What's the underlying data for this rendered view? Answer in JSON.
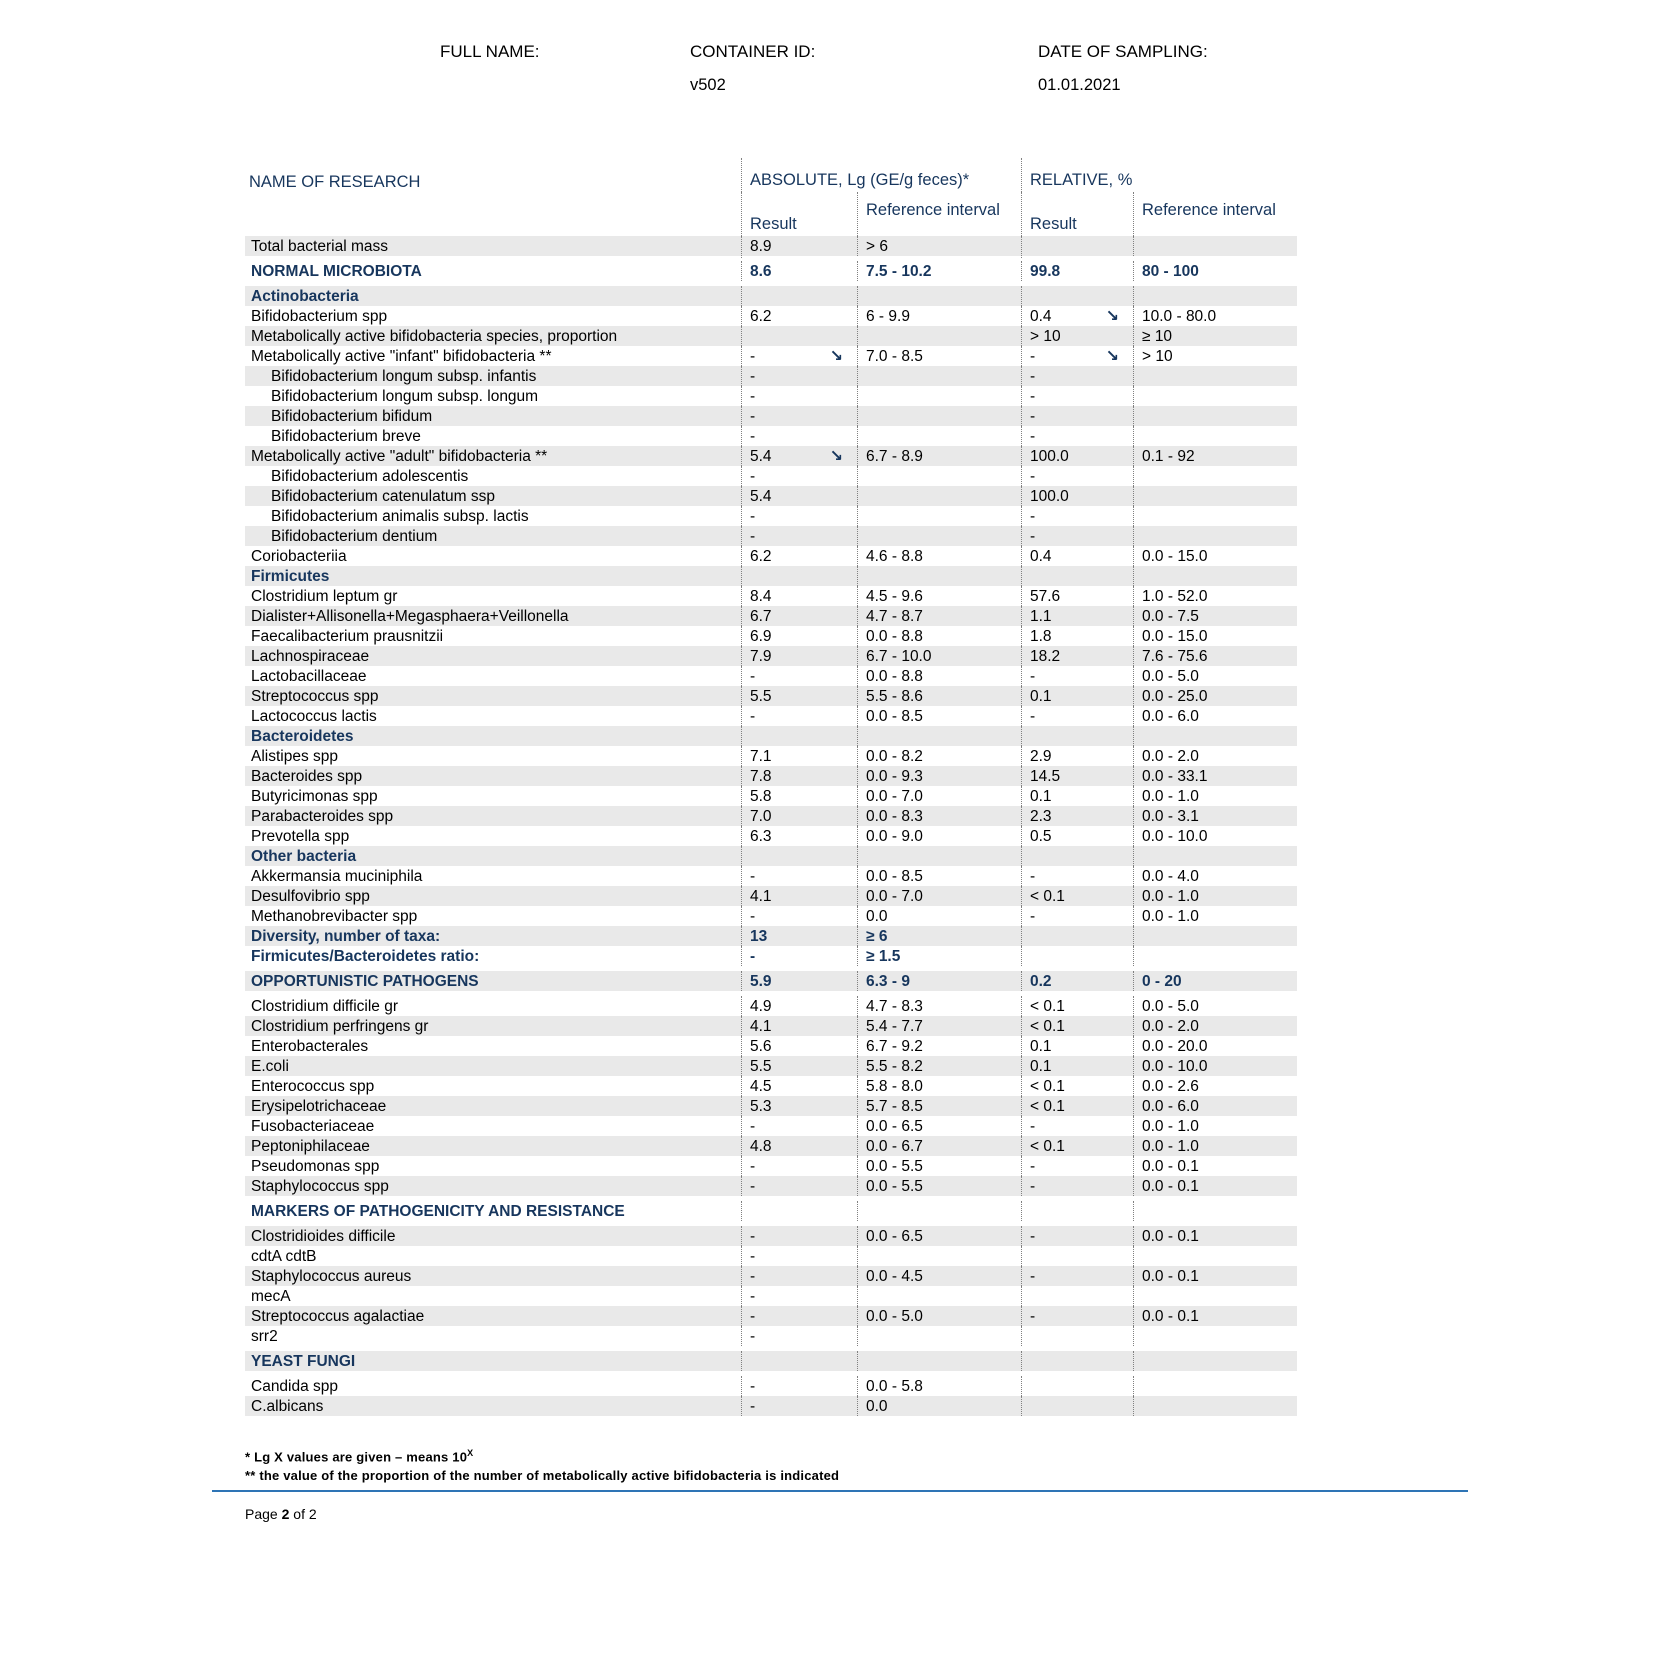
{
  "header": {
    "full_name_label": "FULL NAME:",
    "container_id_label": "CONTAINER ID:",
    "container_id_value": "v502",
    "date_label": "DATE OF SAMPLING:",
    "date_value": "01.01.2021"
  },
  "table": {
    "col_name": "NAME OF RESEARCH",
    "col_absolute": "ABSOLUTE, Lg (GE/g feces)*",
    "col_relative": "RELATIVE, %",
    "sub_result": "Result",
    "sub_ref": "Reference interval",
    "rows": [
      {
        "name": "Total bacterial mass",
        "abs": "8.9",
        "abs_ref": "> 6"
      },
      {
        "name": "NORMAL MICROBIOTA",
        "style": "bold",
        "spaced": true,
        "abs": "8.6",
        "abs_ref": "7.5 - 10.2",
        "rel": "99.8",
        "rel_ref": "80 - 100"
      },
      {
        "name": "Actinobacteria",
        "style": "section"
      },
      {
        "name": "Bifidobacterium spp",
        "abs": "6.2",
        "abs_ref": "6 - 9.9",
        "rel": "0.4",
        "rel_arrow": true,
        "rel_ref": "10.0 - 80.0"
      },
      {
        "name": "Metabolically active bifidobacteria species, proportion",
        "rel": "> 10",
        "rel_ref": "≥ 10"
      },
      {
        "name": "Metabolically active \"infant\" bifidobacteria **",
        "abs": "-",
        "abs_arrow": true,
        "abs_ref": "7.0 - 8.5",
        "rel": "-",
        "rel_arrow": true,
        "rel_ref": "> 10"
      },
      {
        "name": "Bifidobacterium longum subsp. infantis",
        "style": "indent",
        "abs": "-",
        "rel": "-"
      },
      {
        "name": "Bifidobacterium longum subsp. longum",
        "style": "indent",
        "abs": "-",
        "rel": "-"
      },
      {
        "name": "Bifidobacterium bifidum",
        "style": "indent",
        "abs": "-",
        "rel": "-"
      },
      {
        "name": "Bifidobacterium breve",
        "style": "indent",
        "abs": "-",
        "rel": "-"
      },
      {
        "name": "Metabolically active \"adult\" bifidobacteria **",
        "abs": "5.4",
        "abs_arrow": true,
        "abs_ref": "6.7 - 8.9",
        "rel": "100.0",
        "rel_ref": "0.1 - 92"
      },
      {
        "name": "Bifidobacterium adolescentis",
        "style": "indent",
        "abs": "-",
        "rel": "-"
      },
      {
        "name": "Bifidobacterium catenulatum ssp",
        "style": "indent",
        "abs": "5.4",
        "rel": "100.0"
      },
      {
        "name": "Bifidobacterium animalis subsp. lactis",
        "style": "indent",
        "abs": "-",
        "rel": "-"
      },
      {
        "name": "Bifidobacterium dentium",
        "style": "indent",
        "abs": "-",
        "rel": "-"
      },
      {
        "name": "Coriobacteriia",
        "abs": "6.2",
        "abs_ref": "4.6 - 8.8",
        "rel": "0.4",
        "rel_ref": "0.0 - 15.0"
      },
      {
        "name": "Firmicutes",
        "style": "section"
      },
      {
        "name": "Clostridium leptum gr",
        "abs": "8.4",
        "abs_ref": "4.5 - 9.6",
        "rel": "57.6",
        "rel_ref": "1.0 - 52.0"
      },
      {
        "name": "Dialister+Allisonella+Megasphaera+Veillonella",
        "abs": "6.7",
        "abs_ref": "4.7 - 8.7",
        "rel": "1.1",
        "rel_ref": "0.0 - 7.5"
      },
      {
        "name": "Faecalibacterium prausnitzii",
        "abs": "6.9",
        "abs_ref": "0.0 - 8.8",
        "rel": "1.8",
        "rel_ref": "0.0 - 15.0"
      },
      {
        "name": "Lachnospiraceae",
        "abs": "7.9",
        "abs_ref": "6.7 - 10.0",
        "rel": "18.2",
        "rel_ref": "7.6 - 75.6"
      },
      {
        "name": "Lactobacillaceae",
        "abs": "-",
        "abs_ref": "0.0 - 8.8",
        "rel": "-",
        "rel_ref": "0.0 - 5.0"
      },
      {
        "name": "Streptococcus spp",
        "abs": "5.5",
        "abs_ref": "5.5 - 8.6",
        "rel": "0.1",
        "rel_ref": "0.0 - 25.0"
      },
      {
        "name": "Lactococcus lactis",
        "abs": "-",
        "abs_ref": "0.0 - 8.5",
        "rel": "-",
        "rel_ref": "0.0 - 6.0"
      },
      {
        "name": "Bacteroidetes",
        "style": "section"
      },
      {
        "name": "Alistipes spp",
        "abs": "7.1",
        "abs_ref": "0.0 - 8.2",
        "rel": "2.9",
        "rel_ref": "0.0 - 2.0"
      },
      {
        "name": "Bacteroides spp",
        "abs": "7.8",
        "abs_ref": "0.0 - 9.3",
        "rel": "14.5",
        "rel_ref": "0.0 - 33.1"
      },
      {
        "name": "Butyricimonas spp",
        "abs": "5.8",
        "abs_ref": "0.0 - 7.0",
        "rel": "0.1",
        "rel_ref": "0.0 - 1.0"
      },
      {
        "name": "Parabacteroides spp",
        "abs": "7.0",
        "abs_ref": "0.0 - 8.3",
        "rel": "2.3",
        "rel_ref": "0.0 - 3.1"
      },
      {
        "name": "Prevotella spp",
        "abs": "6.3",
        "abs_ref": "0.0 - 9.0",
        "rel": "0.5",
        "rel_ref": "0.0 - 10.0"
      },
      {
        "name": "Other bacteria",
        "style": "section"
      },
      {
        "name": "Akkermansia muciniphila",
        "abs": "-",
        "abs_ref": "0.0 - 8.5",
        "rel": "-",
        "rel_ref": "0.0 - 4.0"
      },
      {
        "name": "Desulfovibrio spp",
        "abs": "4.1",
        "abs_ref": "0.0 - 7.0",
        "rel": "< 0.1",
        "rel_ref": "0.0 - 1.0"
      },
      {
        "name": "Methanobrevibacter spp",
        "abs": "-",
        "abs_ref": "0.0",
        "rel": "-",
        "rel_ref": "0.0 - 1.0"
      },
      {
        "name": "Diversity, number of taxa:",
        "style": "bold",
        "abs": "13",
        "abs_ref": "≥ 6"
      },
      {
        "name": "Firmicutes/Bacteroidetes ratio:",
        "style": "bold",
        "abs": "-",
        "abs_ref": "≥ 1.5"
      },
      {
        "name": "OPPORTUNISTIC PATHOGENS",
        "style": "bold",
        "spaced": true,
        "abs": "5.9",
        "abs_ref": "6.3 - 9",
        "rel": "0.2",
        "rel_ref": "0 - 20"
      },
      {
        "name": "Clostridium difficile gr",
        "abs": "4.9",
        "abs_ref": "4.7 - 8.3",
        "rel": "< 0.1",
        "rel_ref": "0.0 - 5.0"
      },
      {
        "name": "Clostridium perfringens gr",
        "abs": "4.1",
        "abs_ref": "5.4 - 7.7",
        "rel": "< 0.1",
        "rel_ref": "0.0 - 2.0"
      },
      {
        "name": "Enterobacterales",
        "abs": "5.6",
        "abs_ref": "6.7 - 9.2",
        "rel": "0.1",
        "rel_ref": "0.0 - 20.0"
      },
      {
        "name": "E.coli",
        "abs": "5.5",
        "abs_ref": "5.5 - 8.2",
        "rel": "0.1",
        "rel_ref": "0.0 - 10.0"
      },
      {
        "name": "Enterococcus spp",
        "abs": "4.5",
        "abs_ref": "5.8 - 8.0",
        "rel": "< 0.1",
        "rel_ref": "0.0 - 2.6"
      },
      {
        "name": "Erysipelotrichaceae",
        "abs": "5.3",
        "abs_ref": "5.7 - 8.5",
        "rel": "< 0.1",
        "rel_ref": "0.0 - 6.0"
      },
      {
        "name": "Fusobacteriaceae",
        "abs": "-",
        "abs_ref": "0.0 - 6.5",
        "rel": "-",
        "rel_ref": "0.0 - 1.0"
      },
      {
        "name": "Peptoniphilaceae",
        "abs": "4.8",
        "abs_ref": "0.0 - 6.7",
        "rel": "< 0.1",
        "rel_ref": "0.0 - 1.0"
      },
      {
        "name": "Pseudomonas spp",
        "abs": "-",
        "abs_ref": "0.0 - 5.5",
        "rel": "-",
        "rel_ref": "0.0 - 0.1"
      },
      {
        "name": "Staphylococcus spp",
        "abs": "-",
        "abs_ref": "0.0 - 5.5",
        "rel": "-",
        "rel_ref": "0.0 - 0.1"
      },
      {
        "name": "MARKERS OF PATHOGENICITY AND RESISTANCE",
        "style": "section",
        "spaced": true
      },
      {
        "name": "Clostridioides difficile",
        "abs": "-",
        "abs_ref": "0.0 - 6.5",
        "rel": "-",
        "rel_ref": "0.0 - 0.1"
      },
      {
        "name": "cdtA cdtB",
        "abs": "-"
      },
      {
        "name": "Staphylococcus aureus",
        "abs": "-",
        "abs_ref": "0.0 - 4.5",
        "rel": "-",
        "rel_ref": "0.0 - 0.1"
      },
      {
        "name": "mecA",
        "abs": "-"
      },
      {
        "name": "Streptococcus agalactiae",
        "abs": "-",
        "abs_ref": "0.0 - 5.0",
        "rel": "-",
        "rel_ref": "0.0 - 0.1"
      },
      {
        "name": "srr2",
        "abs": "-"
      },
      {
        "name": "YEAST FUNGI",
        "style": "section",
        "spaced": true
      },
      {
        "name": "Candida spp",
        "abs": "-",
        "abs_ref": "0.0 - 5.8"
      },
      {
        "name": "C.albicans",
        "abs": "-",
        "abs_ref": "0.0"
      }
    ]
  },
  "footer": {
    "footnote1": "* Lg X values are given – means 10",
    "footnote1_sup": "X",
    "footnote2": "** the value of the proportion of the number of metabolically active bifidobacteria is indicated",
    "page_prefix": "Page ",
    "page_number": "2",
    "page_suffix": " of 2"
  }
}
